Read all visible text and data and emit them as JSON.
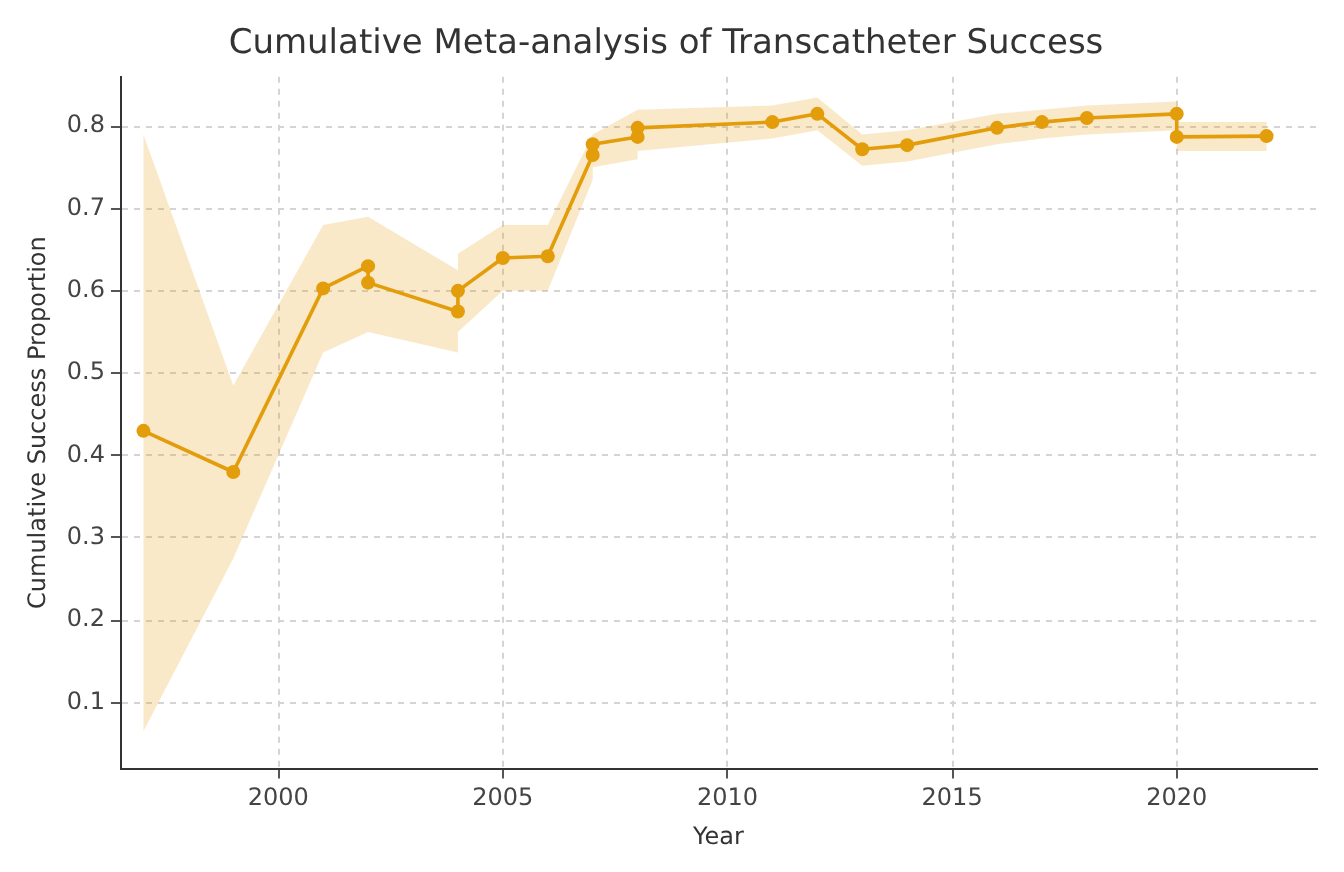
{
  "chart_data": {
    "type": "line",
    "title": "Cumulative Meta-analysis of Transcatheter Success",
    "xlabel": "Year",
    "ylabel": "Cumulative Success Proportion",
    "x": [
      1997,
      1999,
      2001,
      2002,
      2002,
      2004,
      2004,
      2005,
      2006,
      2007,
      2007,
      2008,
      2008,
      2011,
      2012,
      2013,
      2014,
      2016,
      2017,
      2018,
      2020,
      2020,
      2022
    ],
    "series": [
      {
        "color": "#e39c0a",
        "values": [
          0.43,
          0.38,
          0.603,
          0.63,
          0.61,
          0.575,
          0.6,
          0.64,
          0.642,
          0.765,
          0.778,
          0.787,
          0.798,
          0.805,
          0.815,
          0.772,
          0.777,
          0.798,
          0.805,
          0.81,
          0.815,
          0.787,
          0.788
        ],
        "upper": [
          0.79,
          0.485,
          0.68,
          0.69,
          0.69,
          0.625,
          0.645,
          0.68,
          0.68,
          0.79,
          0.79,
          0.82,
          0.82,
          0.825,
          0.835,
          0.79,
          0.795,
          0.815,
          0.82,
          0.825,
          0.83,
          0.805,
          0.805
        ],
        "lower": [
          0.065,
          0.275,
          0.525,
          0.55,
          0.55,
          0.525,
          0.55,
          0.6,
          0.6,
          0.735,
          0.75,
          0.76,
          0.77,
          0.785,
          0.795,
          0.752,
          0.757,
          0.778,
          0.785,
          0.79,
          0.795,
          0.77,
          0.77
        ]
      }
    ],
    "xlim": [
      1996.5,
      2023.1
    ],
    "ylim": [
      0.02,
      0.86
    ],
    "xticks": [
      2000,
      2005,
      2010,
      2015,
      2020
    ],
    "yticks": [
      0.1,
      0.2,
      0.3,
      0.4,
      0.5,
      0.6,
      0.7,
      0.8
    ],
    "grid": true,
    "marker": "circle",
    "line_style": "solid"
  }
}
